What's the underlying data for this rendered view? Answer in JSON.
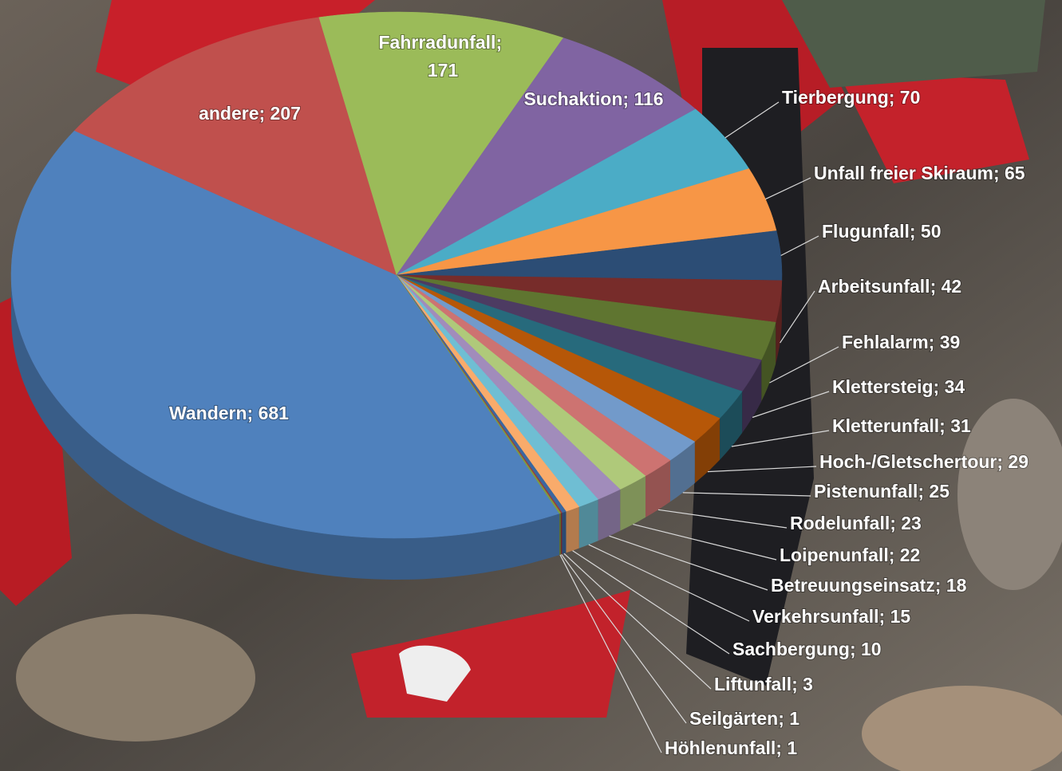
{
  "chart_data": {
    "type": "pie",
    "categories": [
      "Wandern",
      "andere",
      "Fahrradunfall",
      "Suchaktion",
      "Tierbergung",
      "Unfall freier Skiraum",
      "Flugunfall",
      "Arbeitsunfall",
      "Fehlalarm",
      "Klettersteig",
      "Kletterunfall",
      "Hoch-/Gletschertour",
      "Pistenunfall",
      "Rodelunfall",
      "Loipenunfall",
      "Betreuungseinsatz",
      "Verkehrsunfall",
      "Sachbergung",
      "Liftunfall",
      "Seilgärten",
      "Höhlenunfall"
    ],
    "values": [
      681,
      207,
      171,
      116,
      70,
      65,
      50,
      42,
      39,
      34,
      31,
      29,
      25,
      23,
      22,
      18,
      15,
      10,
      3,
      1,
      1
    ],
    "value_labels": [
      "Wandern; 681",
      "andere; 207",
      "Fahrradunfall; 171",
      "Suchaktion; 116",
      "Tierbergung; 70",
      "Unfall freier Skiraum; 65",
      "Flugunfall; 50",
      "Arbeitsunfall; 42",
      "Fehlalarm; 39",
      "Klettersteig; 34",
      "Kletterunfall; 31",
      "Hoch-/Gletschertour; 29",
      "Pistenunfall; 25",
      "Rodelunfall; 23",
      "Loipenunfall; 22",
      "Betreuungseinsatz; 18",
      "Verkehrsunfall; 15",
      "Sachbergung; 10",
      "Liftunfall; 3",
      "Seilgärten; 1",
      "Höhlenunfall; 1"
    ],
    "colors": [
      "#4f81bd",
      "#c0504d",
      "#9bbb59",
      "#8064a2",
      "#4bacc6",
      "#f79646",
      "#2c4d75",
      "#772c2a",
      "#5f7530",
      "#4d3b62",
      "#276a7c",
      "#b65708",
      "#729aca",
      "#cd7371",
      "#afc97a",
      "#a18cbb",
      "#6fbed3",
      "#f9ab6b",
      "#3a67a0",
      "#9e3b38",
      "#7e9d40"
    ]
  }
}
